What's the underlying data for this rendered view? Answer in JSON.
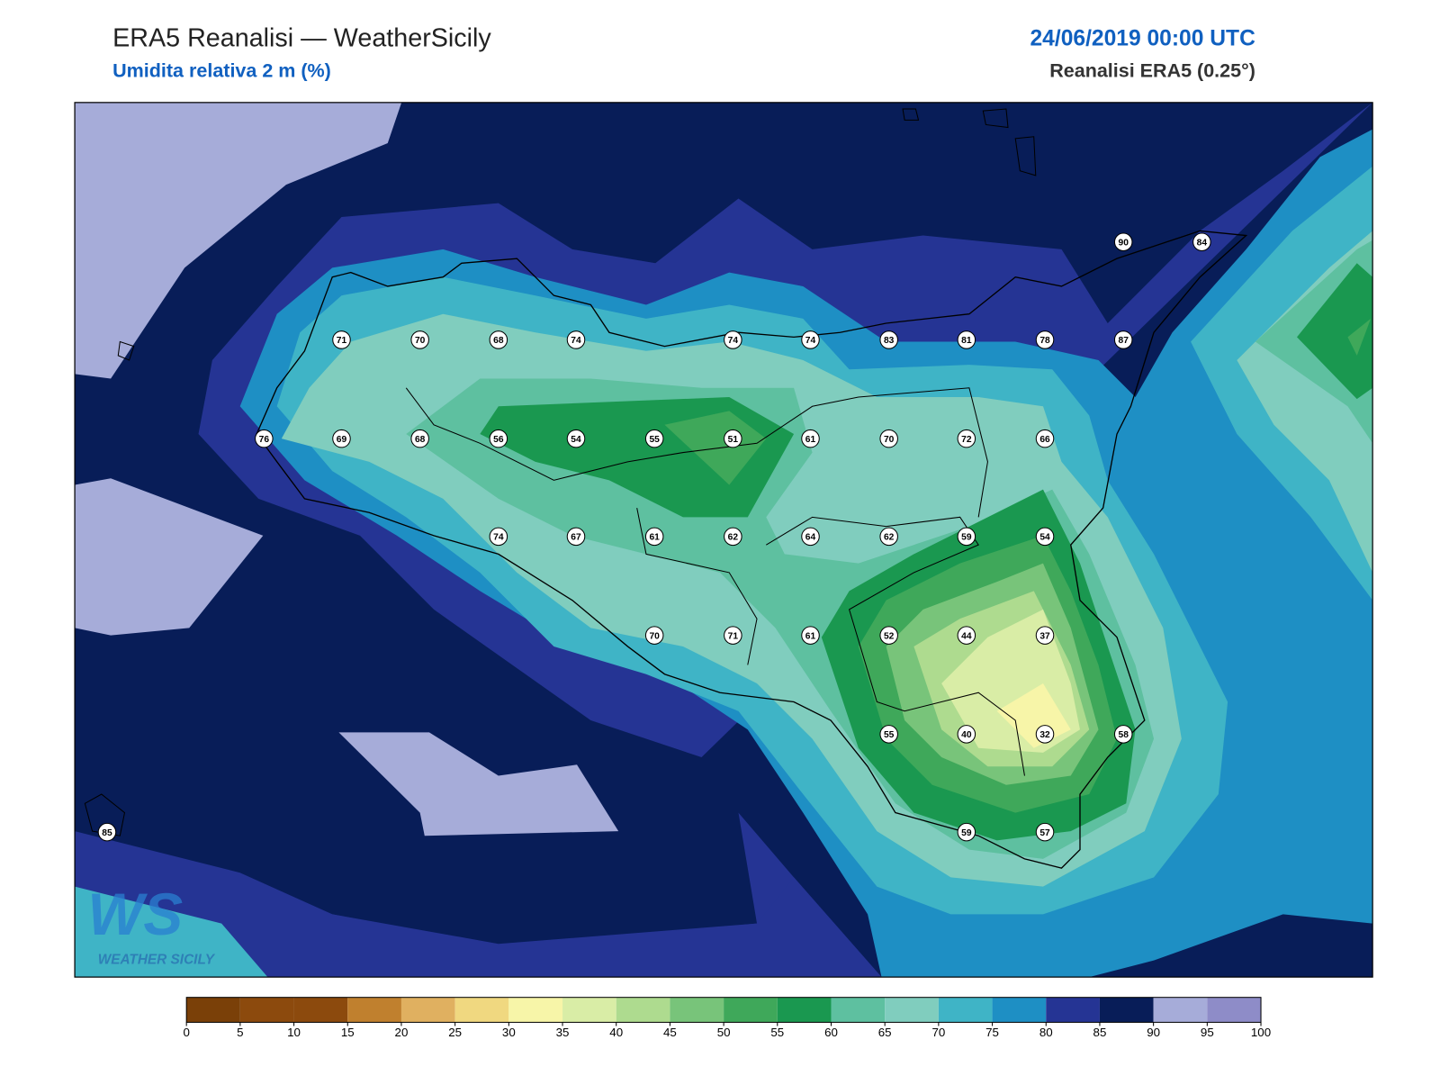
{
  "header": {
    "title": "ERA5 Reanalisi — WeatherSicily",
    "subtitle": "Umidita relativa 2 m (%)",
    "datetime": "24/06/2019 00:00 UTC",
    "source": "Reanalisi ERA5 (0.25°)"
  },
  "stations": [
    90,
    84,
    71,
    70,
    68,
    74,
    74,
    74,
    83,
    81,
    78,
    87,
    76,
    69,
    68,
    56,
    54,
    55,
    51,
    61,
    70,
    72,
    66,
    74,
    67,
    61,
    62,
    64,
    62,
    59,
    54,
    70,
    71,
    61,
    52,
    44,
    37,
    55,
    40,
    32,
    58,
    85,
    59,
    57
  ],
  "colorbar": {
    "ticks": [
      0,
      5,
      10,
      15,
      20,
      25,
      30,
      35,
      40,
      45,
      50,
      55,
      60,
      65,
      70,
      75,
      80,
      85,
      90,
      95,
      100
    ],
    "colors": [
      "#7a4008",
      "#8c4a0d",
      "#8c4a0d",
      "#c0802e",
      "#e0b060",
      "#f0d880",
      "#f7f5a8",
      "#d9eda6",
      "#aedb8f",
      "#78c47a",
      "#3fa85a",
      "#1a9850",
      "#5ec0a0",
      "#80cdbe",
      "#3fb4c6",
      "#1e8fc4",
      "#253494",
      "#081d58",
      "#a6acd9",
      "#8e8cc8"
    ]
  },
  "logo": {
    "mark": "WS",
    "text": "WEATHER SICILY"
  }
}
